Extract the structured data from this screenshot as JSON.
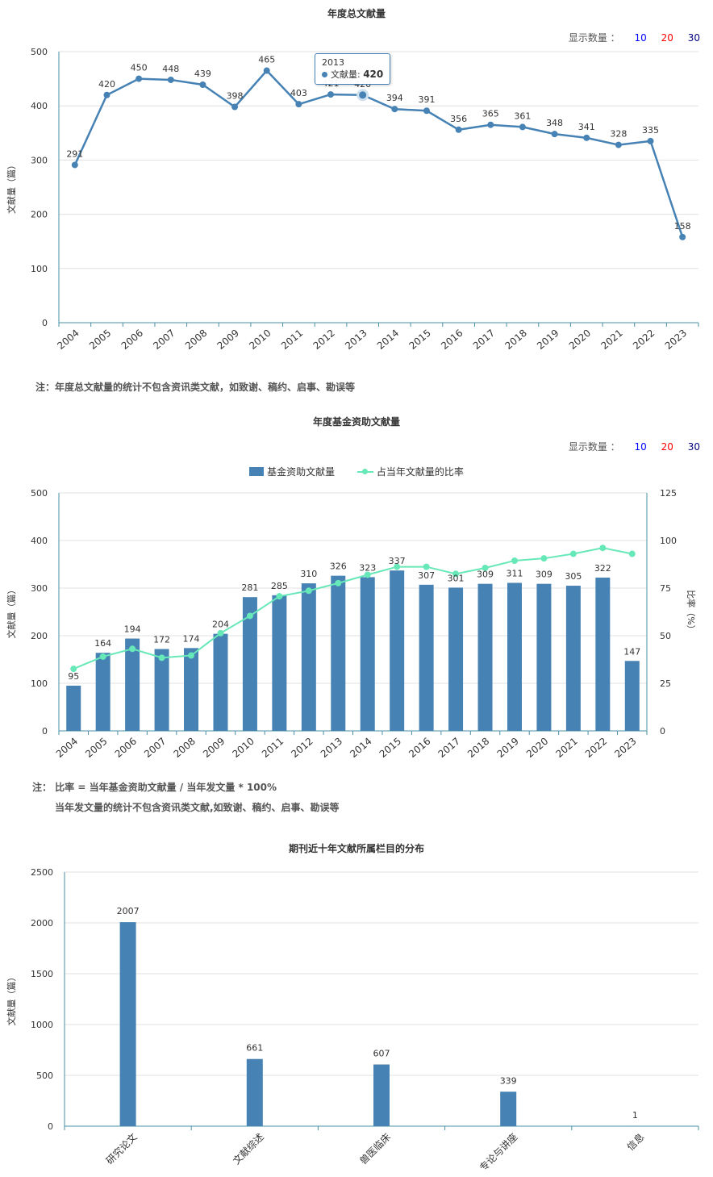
{
  "chart1": {
    "title": "年度总文献量",
    "count_label": "显示数量 ：",
    "count_options": [
      {
        "label": "10",
        "color": "#0000ff"
      },
      {
        "label": "20",
        "color": "#ff0000"
      },
      {
        "label": "30",
        "color": "#000080"
      }
    ],
    "note": "注：年度总文献量的统计不包含资讯类文献，如致谢、稿约、启事、勘误等",
    "tooltip": {
      "year": "2013",
      "series": "文献量",
      "value": "420"
    }
  },
  "chart2": {
    "title": "年度基金资助文献量",
    "count_label": "显示数量 ：",
    "count_options": [
      {
        "label": "10",
        "color": "#0000ff"
      },
      {
        "label": "20",
        "color": "#ff0000"
      },
      {
        "label": "30",
        "color": "#000080"
      }
    ],
    "note_line1": "注： 比率 = 当年基金资助文献量 / 当年发文量 * 100%",
    "note_line2": "当年发文量的统计不包含资讯类文献,如致谢、稿约、启事、勘误等"
  },
  "chart3": {
    "title": "期刊近十年文献所属栏目的分布"
  },
  "colors": {
    "line": "#4682b4",
    "bar": "#4682b4",
    "ratio": "#66e8b8",
    "axis": "#4a90a4"
  },
  "chart_data": [
    {
      "type": "line",
      "title": "年度总文献量",
      "ylabel": "文献量（篇）",
      "ylim": [
        0,
        500
      ],
      "yticks": [
        0,
        100,
        200,
        300,
        400,
        500
      ],
      "grid": true,
      "categories": [
        "2004",
        "2005",
        "2006",
        "2007",
        "2008",
        "2009",
        "2010",
        "2011",
        "2012",
        "2013",
        "2014",
        "2015",
        "2016",
        "2017",
        "2018",
        "2019",
        "2020",
        "2021",
        "2022",
        "2023"
      ],
      "series": [
        {
          "name": "文献量",
          "values": [
            291,
            420,
            450,
            448,
            439,
            398,
            465,
            403,
            421,
            420,
            394,
            391,
            356,
            365,
            361,
            348,
            341,
            328,
            335,
            158
          ]
        }
      ]
    },
    {
      "type": "bar",
      "title": "年度基金资助文献量",
      "ylabel": "文献量（篇）",
      "y2label": "比率（%）",
      "ylim": [
        0,
        500
      ],
      "y2lim": [
        0,
        125
      ],
      "yticks": [
        0,
        100,
        200,
        300,
        400,
        500
      ],
      "y2ticks": [
        0,
        25,
        50,
        75,
        100,
        125
      ],
      "grid": true,
      "legend": "top-center",
      "categories": [
        "2004",
        "2005",
        "2006",
        "2007",
        "2008",
        "2009",
        "2010",
        "2011",
        "2012",
        "2013",
        "2014",
        "2015",
        "2016",
        "2017",
        "2018",
        "2019",
        "2020",
        "2021",
        "2022",
        "2023"
      ],
      "series": [
        {
          "name": "基金资助文献量",
          "type": "bar",
          "values": [
            95,
            164,
            194,
            172,
            174,
            204,
            281,
            285,
            310,
            326,
            323,
            337,
            307,
            301,
            309,
            311,
            309,
            305,
            322,
            147
          ]
        },
        {
          "name": "占当年文献量的比率",
          "type": "line",
          "axis": "right",
          "values": [
            32.6,
            39.0,
            43.1,
            38.4,
            39.6,
            51.3,
            60.4,
            70.7,
            73.6,
            77.6,
            82.0,
            86.2,
            86.2,
            82.5,
            85.6,
            89.4,
            90.6,
            93.0,
            96.1,
            93.0
          ]
        }
      ]
    },
    {
      "type": "bar",
      "title": "期刊近十年文献所属栏目的分布",
      "ylabel": "文献量（篇）",
      "ylim": [
        0,
        2500
      ],
      "yticks": [
        0,
        500,
        1000,
        1500,
        2000,
        2500
      ],
      "grid": true,
      "categories": [
        "研究论文",
        "文献综述",
        "兽医临床",
        "专论与讲座",
        "信息"
      ],
      "values": [
        2007,
        661,
        607,
        339,
        1
      ]
    }
  ]
}
